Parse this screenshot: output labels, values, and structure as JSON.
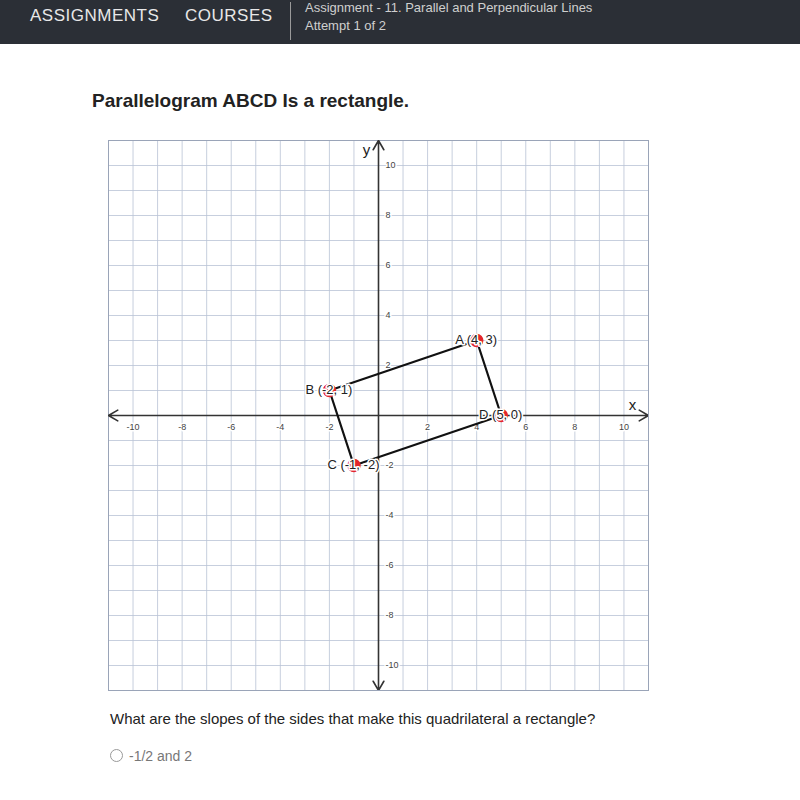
{
  "header": {
    "tabs": [
      "ASSIGNMENTS",
      "COURSES"
    ],
    "assignment": "Assignment - 11. Parallel and Perpendicular Lines",
    "attempt": "Attempt 1 of 2"
  },
  "chart_data": {
    "type": "polygon",
    "title": "Parallelogram ABCD Is a rectangle.",
    "x_label": "x",
    "y_label": "y",
    "x": [
      4,
      -2,
      -1,
      5
    ],
    "y": [
      3,
      1,
      -2,
      0
    ],
    "point_labels": [
      "A (4, 3)",
      "B (-2, 1)",
      "C (-1, -2)",
      "D (5, 0)"
    ],
    "color": "#e3262b",
    "marker": "circle",
    "xlim": [
      -11,
      11
    ],
    "ylim": [
      -11,
      11
    ],
    "xticks": [
      -10,
      -8,
      -6,
      -4,
      -2,
      2,
      4,
      6,
      8,
      10
    ],
    "yticks": [
      -10,
      -8,
      -6,
      -4,
      -2,
      2,
      4,
      6,
      8,
      10
    ],
    "grid": true
  },
  "question": "What are the slopes of the sides that make this quadrilateral a rectangle?",
  "options": [
    "-1/2 and 2"
  ]
}
